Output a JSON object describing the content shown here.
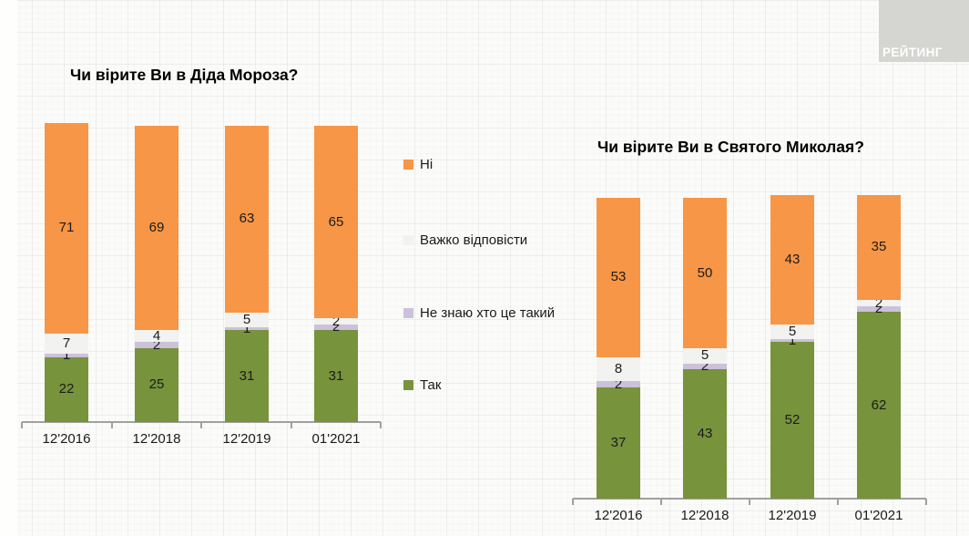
{
  "logo": {
    "text": "РЕЙТИНГ"
  },
  "legend": {
    "items": [
      {
        "label": "Ні",
        "color": "#F79646"
      },
      {
        "label": "Важко відповісти",
        "color": "#F2F2F0"
      },
      {
        "label": "Не знаю хто це такий",
        "color": "#CCC1DA"
      },
      {
        "label": "Так",
        "color": "#77933C"
      }
    ]
  },
  "chart_data": [
    {
      "type": "bar",
      "stacked": true,
      "title": "Чи вірите Ви в Діда Мороза?",
      "categories": [
        "12'2016",
        "12'2018",
        "12'2019",
        "01'2021"
      ],
      "series": [
        {
          "name": "Так",
          "color": "#77933C",
          "values": [
            22,
            25,
            31,
            31
          ]
        },
        {
          "name": "Не знаю хто це такий",
          "color": "#CCC1DA",
          "values": [
            1,
            2,
            1,
            2
          ]
        },
        {
          "name": "Важко відповісти",
          "color": "#F2F2F0",
          "values": [
            7,
            4,
            5,
            2
          ]
        },
        {
          "name": "Ні",
          "color": "#F79646",
          "values": [
            71,
            69,
            63,
            65
          ]
        }
      ],
      "unit": "percent",
      "ylim": [
        0,
        101
      ],
      "grid": false,
      "legend_position": "right-of-chart"
    },
    {
      "type": "bar",
      "stacked": true,
      "title": "Чи вірите Ви в Святого Миколая?",
      "categories": [
        "12'2016",
        "12'2018",
        "12'2019",
        "01'2021"
      ],
      "series": [
        {
          "name": "Так",
          "color": "#77933C",
          "values": [
            37,
            43,
            52,
            62
          ]
        },
        {
          "name": "Не знаю хто це такий",
          "color": "#CCC1DA",
          "values": [
            2,
            2,
            1,
            2
          ]
        },
        {
          "name": "Важко відповісти",
          "color": "#F2F2F0",
          "values": [
            8,
            5,
            5,
            2
          ]
        },
        {
          "name": "Ні",
          "color": "#F79646",
          "values": [
            53,
            50,
            43,
            35
          ]
        }
      ],
      "unit": "percent",
      "ylim": [
        0,
        101
      ],
      "grid": false,
      "legend_position": "shared"
    }
  ]
}
